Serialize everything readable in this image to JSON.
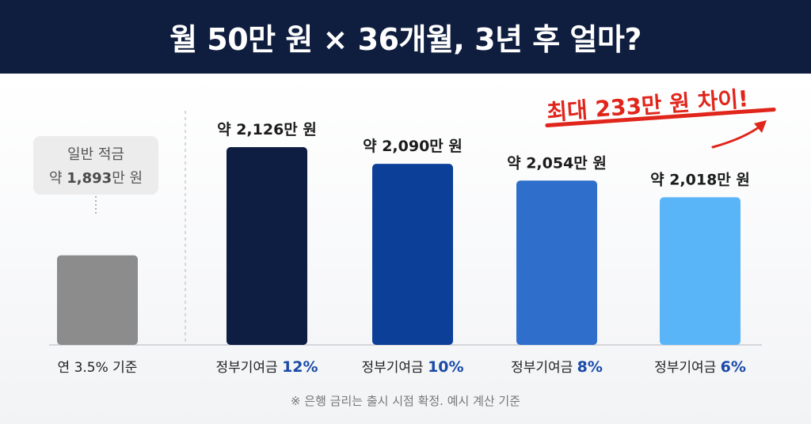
{
  "header": {
    "title": "월 50만 원 × 36개월, 3년 후 얼마?"
  },
  "baseline_box": {
    "line1": "일반 적금",
    "prefix": "약 ",
    "amount": "1,893",
    "suffix": "만 원"
  },
  "annotation": {
    "text": "최대 233만 원 차이!"
  },
  "footnote": "※ 은행 금리는 출시 시점 확정. 예시 계산 기준",
  "chart_data": {
    "type": "bar",
    "unit": "만 원",
    "categories": [
      "연 3.5% 기준",
      "정부기여금 12%",
      "정부기여금 10%",
      "정부기여금 8%",
      "정부기여금 6%"
    ],
    "category_parts": [
      {
        "text": "연 3.5% 기준",
        "highlight": ""
      },
      {
        "text": "정부기여금 ",
        "highlight": "12%"
      },
      {
        "text": "정부기여금 ",
        "highlight": "10%"
      },
      {
        "text": "정부기여금 ",
        "highlight": "8%"
      },
      {
        "text": "정부기여금 ",
        "highlight": "6%"
      }
    ],
    "values": [
      1893,
      2126,
      2090,
      2054,
      2018
    ],
    "data_labels": [
      "",
      "약 2,126만 원",
      "약 2,090만 원",
      "약 2,054만 원",
      "약 2,018만 원"
    ],
    "colors": [
      "#8c8c8c",
      "#0e1d42",
      "#0b3f98",
      "#2f6fcb",
      "#5ab4f8"
    ],
    "highlight_color": "#1a4aa8",
    "annotation_color": "#e0251b"
  }
}
